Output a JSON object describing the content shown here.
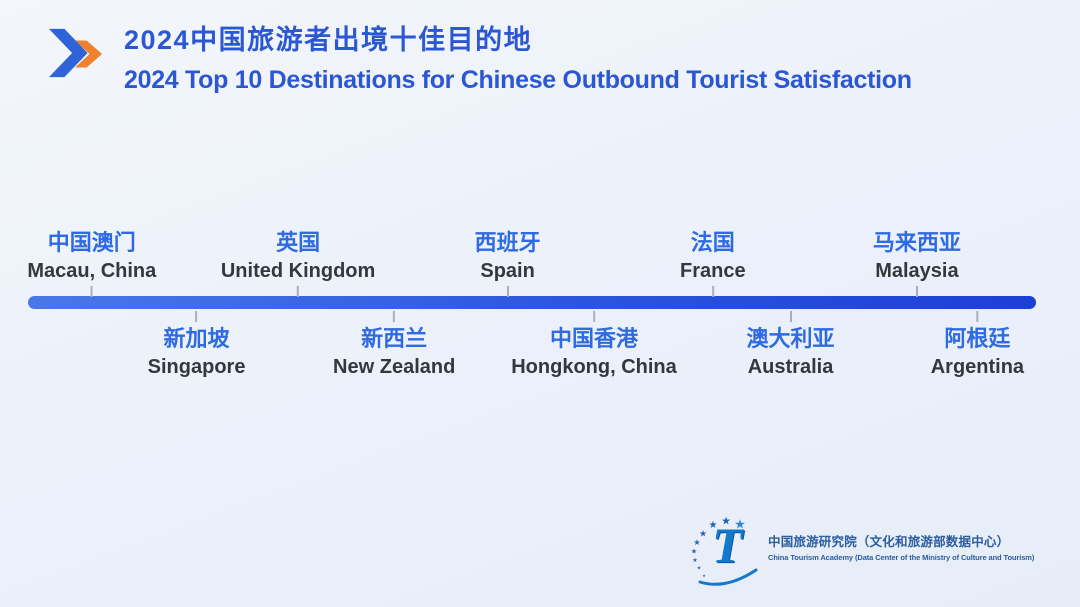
{
  "page": {
    "background_top_color": "#f3f6fb",
    "background_bottom_color": "#e7edf8"
  },
  "header": {
    "icon": "double-chevron-arrow",
    "icon_front_color": "#2f63d8",
    "icon_back_color": "#f0812f",
    "title_zh": "2024中国旅游者出境十佳目的地",
    "title_en": "2024 Top 10 Destinations for Chinese Outbound Tourist Satisfaction",
    "title_color": "#2b57d2"
  },
  "timeline": {
    "line_color_left": "#4a78e8",
    "line_color_right": "#1c3fd6",
    "label_color_zh": "#2e6ae2",
    "label_color_en": "#35373c",
    "destinations": [
      {
        "name_zh": "中国澳门",
        "name_en": "Macau, China",
        "side": "above",
        "x_percent": 8.5
      },
      {
        "name_zh": "新加坡",
        "name_en": "Singapore",
        "side": "below",
        "x_percent": 18.2
      },
      {
        "name_zh": "英国",
        "name_en": "United Kingdom",
        "side": "above",
        "x_percent": 27.6
      },
      {
        "name_zh": "新西兰",
        "name_en": "New Zealand",
        "side": "below",
        "x_percent": 36.5
      },
      {
        "name_zh": "西班牙",
        "name_en": "Spain",
        "side": "above",
        "x_percent": 47.0
      },
      {
        "name_zh": "中国香港",
        "name_en": "Hongkong, China",
        "side": "below",
        "x_percent": 55.0
      },
      {
        "name_zh": "法国",
        "name_en": "France",
        "side": "above",
        "x_percent": 66.0
      },
      {
        "name_zh": "澳大利亚",
        "name_en": "Australia",
        "side": "below",
        "x_percent": 73.2
      },
      {
        "name_zh": "马来西亚",
        "name_en": "Malaysia",
        "side": "above",
        "x_percent": 84.9
      },
      {
        "name_zh": "阿根廷",
        "name_en": "Argentina",
        "side": "below",
        "x_percent": 90.5
      }
    ]
  },
  "footer": {
    "logo": "china-tourism-academy-logo",
    "logo_letter": "T",
    "logo_color": "#1478cc",
    "star_color": "#1e64b0",
    "org_zh": "中国旅游研究院（文化和旅游部数据中心）",
    "org_en": "China Tourism Academy (Data Center of the Ministry of Culture and Tourism)",
    "org_color": "#2a5c9e"
  }
}
